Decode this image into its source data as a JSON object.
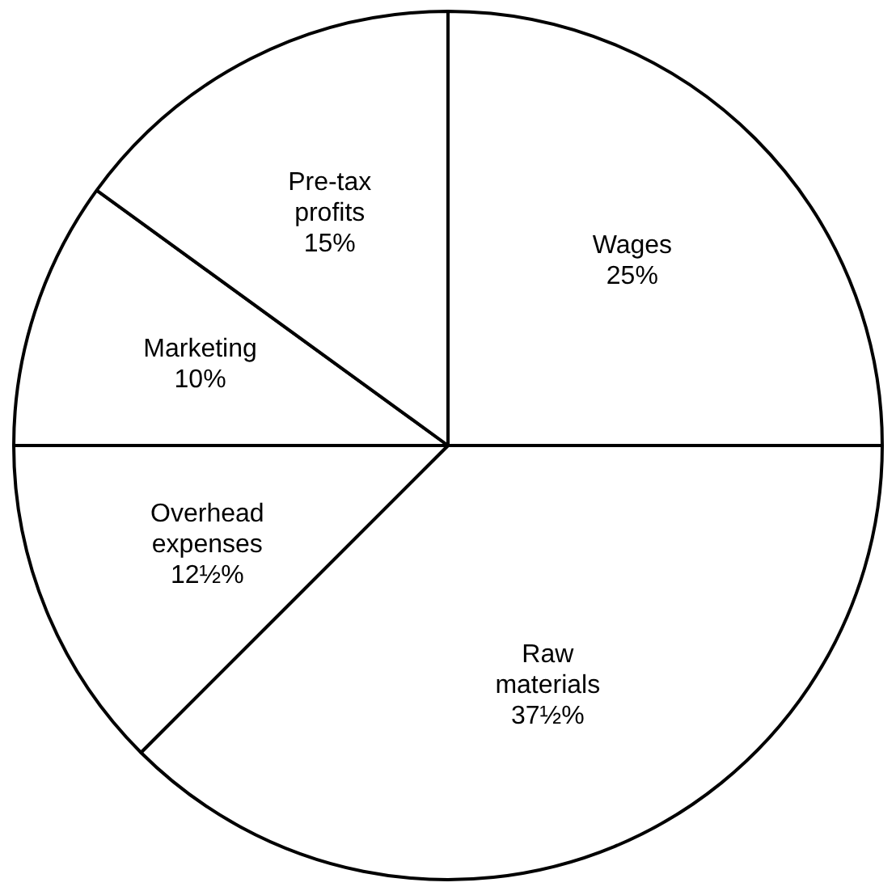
{
  "chart_data": {
    "type": "pie",
    "categories": [
      "Wages",
      "Raw materials",
      "Overhead expenses",
      "Marketing",
      "Pre-tax profits"
    ],
    "values": [
      25,
      37.5,
      12.5,
      10,
      15
    ],
    "value_labels": [
      "25%",
      "37½%",
      "12½%",
      "10%",
      "15%"
    ],
    "colors": [
      "#ffffff",
      "#ffffff",
      "#ffffff",
      "#ffffff",
      "#ffffff"
    ]
  }
}
